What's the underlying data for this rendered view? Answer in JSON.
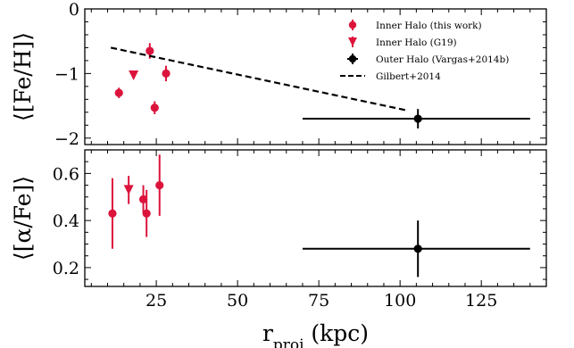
{
  "colors": {
    "inner": "#dc143c",
    "outer": "#000000",
    "fit": "#000000"
  },
  "chart_data": {
    "type": "scatter",
    "shared_x": {
      "label_main": "r",
      "label_sub": "proj",
      "label_unit": " (kpc)",
      "lim": [
        3,
        145
      ],
      "ticks": [
        25,
        50,
        75,
        100,
        125
      ]
    },
    "legend": {
      "placement": "top-right",
      "items": [
        {
          "label": "Inner Halo (this work)",
          "marker": "circle",
          "color": "#dc143c"
        },
        {
          "label": "Inner Halo (G19)",
          "marker": "triangle-down",
          "color": "#dc143c"
        },
        {
          "label": "Outer Halo (Vargas+2014b)",
          "marker": "circle",
          "color": "#000000"
        },
        {
          "label": "Gilbert+2014",
          "marker": "dashed-line",
          "color": "#000000"
        }
      ]
    },
    "panels": [
      {
        "ylabel": "⟨[Fe/H]⟩",
        "ylim": [
          -2.1,
          0.0
        ],
        "yticks": [
          0,
          -1,
          -2
        ],
        "ytick_labels": [
          "0",
          "−1",
          "−2"
        ],
        "series": [
          {
            "name": "Inner Halo (this work)",
            "marker": "circle",
            "color": "#dc143c",
            "points": [
              {
                "x": 13.5,
                "y": -1.3,
                "yerr": 0.08
              },
              {
                "x": 23.0,
                "y": -0.65,
                "yerr": 0.12
              },
              {
                "x": 24.5,
                "y": -1.53,
                "yerr": 0.1
              },
              {
                "x": 28.0,
                "y": -1.0,
                "yerr": 0.12
              }
            ]
          },
          {
            "name": "Inner Halo (G19)",
            "marker": "triangle-down",
            "color": "#dc143c",
            "points": [
              {
                "x": 18.0,
                "y": -1.03,
                "yerr": 0.05
              }
            ]
          },
          {
            "name": "Outer Halo (Vargas+2014b)",
            "marker": "circle",
            "color": "#000000",
            "points": [
              {
                "x": 105.5,
                "y": -1.7,
                "yerr": 0.15,
                "xerr_low": 35.5,
                "xerr_high": 34.5
              }
            ]
          },
          {
            "name": "Gilbert+2014",
            "type": "line",
            "style": "dashed",
            "color": "#000000",
            "x": [
              11,
              102
            ],
            "y": [
              -0.6,
              -1.57
            ]
          }
        ]
      },
      {
        "ylabel": "⟨[α/Fe]⟩",
        "ylim": [
          0.12,
          0.7
        ],
        "yticks": [
          0.2,
          0.4,
          0.6
        ],
        "ytick_labels": [
          "0.2",
          "0.4",
          "0.6"
        ],
        "series": [
          {
            "name": "Inner Halo (this work)",
            "marker": "circle",
            "color": "#dc143c",
            "points": [
              {
                "x": 11.5,
                "y": 0.43,
                "yerr": 0.15
              },
              {
                "x": 21.0,
                "y": 0.49,
                "yerr": 0.06
              },
              {
                "x": 22.0,
                "y": 0.43,
                "yerr": 0.1
              },
              {
                "x": 26.0,
                "y": 0.55,
                "yerr": 0.13
              }
            ]
          },
          {
            "name": "Inner Halo (G19)",
            "marker": "triangle-down",
            "color": "#dc143c",
            "points": [
              {
                "x": 16.5,
                "y": 0.53,
                "yerr": 0.06
              }
            ]
          },
          {
            "name": "Outer Halo (Vargas+2014b)",
            "marker": "circle",
            "color": "#000000",
            "points": [
              {
                "x": 105.5,
                "y": 0.28,
                "yerr": 0.12,
                "xerr_low": 35.5,
                "xerr_high": 34.5
              }
            ]
          }
        ]
      }
    ]
  }
}
